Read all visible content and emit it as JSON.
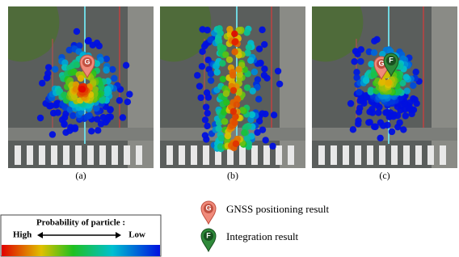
{
  "panels": [
    {
      "label": "(a)"
    },
    {
      "label": "(b)"
    },
    {
      "label": "(c)"
    }
  ],
  "legend": {
    "colorbar": {
      "title": "Probability of particle :",
      "high": "High",
      "low": "Low"
    },
    "markers": [
      {
        "letter": "G",
        "label": "GNSS positioning result"
      },
      {
        "letter": "F",
        "label": "Integration result"
      }
    ]
  }
}
